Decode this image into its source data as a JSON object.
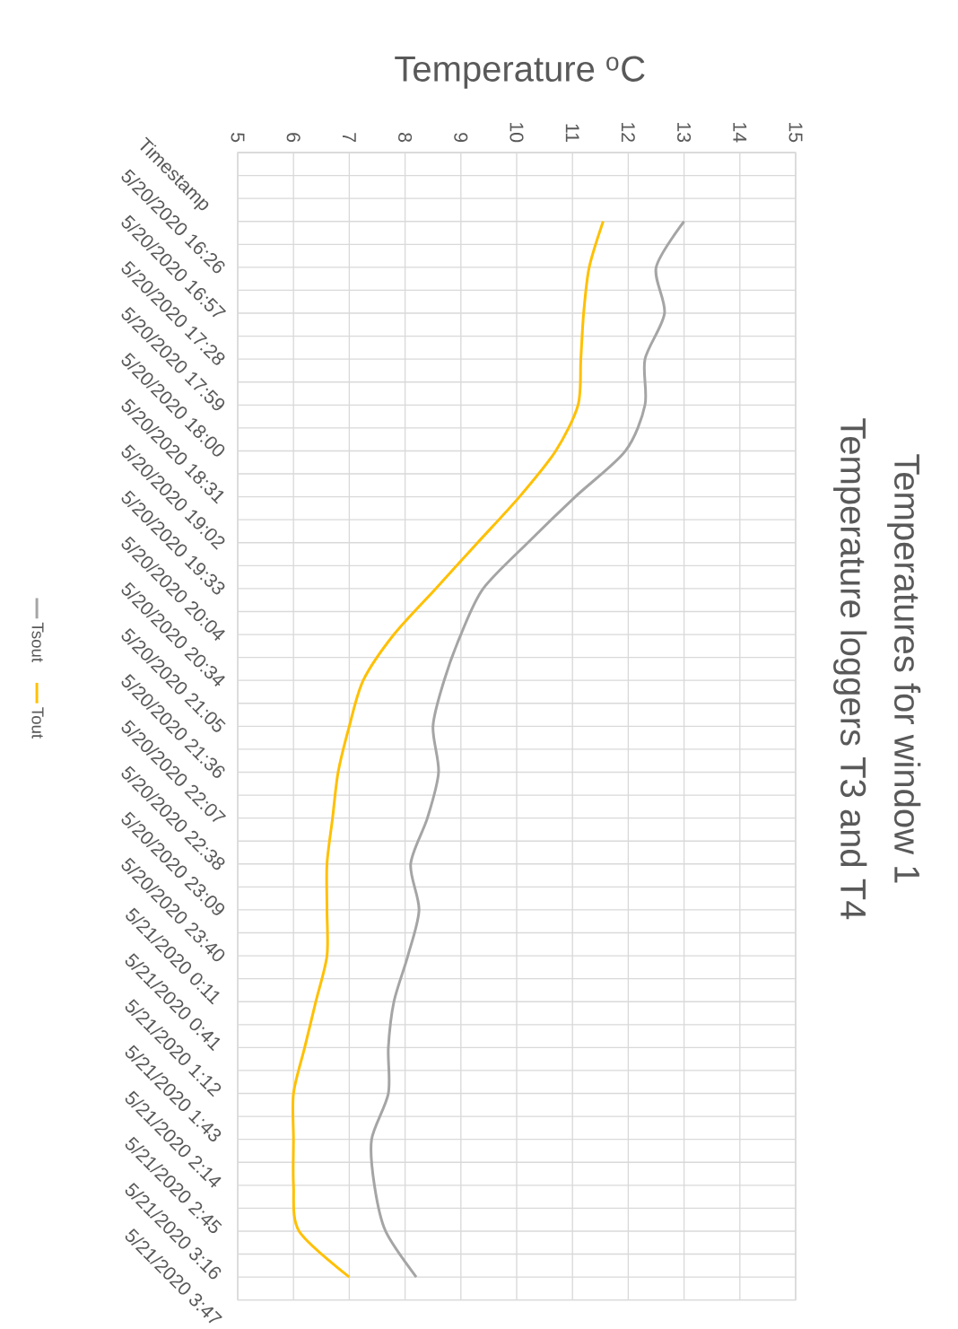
{
  "chart_data": {
    "type": "line",
    "title": "Temperatures for window 1",
    "subtitle": "Temperature loggers T3 and T4",
    "xlabel": "Temperature $^{o}$C",
    "orientation": "horizontal",
    "categories": [
      "Timestamp",
      "5/20/2020 16:26",
      "5/20/2020 16:57",
      "5/20/2020 17:28",
      "5/20/2020 17:59",
      "5/20/2020 18:00",
      "5/20/2020 18:31",
      "5/20/2020 19:02",
      "5/20/2020 19:33",
      "5/20/2020 20:04",
      "5/20/2020 20:34",
      "5/20/2020 21:05",
      "5/20/2020 21:36",
      "5/20/2020 22:07",
      "5/20/2020 22:38",
      "5/20/2020 23:09",
      "5/20/2020 23:40",
      "5/21/2020 0:11",
      "5/21/2020 0:41",
      "5/21/2020 1:12",
      "5/21/2020 1:43",
      "5/21/2020 2:14",
      "5/21/2020 2:45",
      "5/21/2020 3:16",
      "5/21/2020 3:47"
    ],
    "series": [
      {
        "name": "Tsout",
        "color": "#a5a5a5",
        "values": [
          null,
          13.0,
          12.5,
          12.65,
          12.3,
          12.3,
          11.95,
          11.05,
          10.2,
          9.4,
          9.0,
          8.7,
          8.5,
          8.6,
          8.4,
          8.1,
          8.25,
          8.05,
          7.8,
          7.7,
          7.7,
          7.4,
          7.45,
          7.65,
          8.2
        ]
      },
      {
        "name": "Tout",
        "color": "#ffc000",
        "values": [
          null,
          11.55,
          11.3,
          11.2,
          11.15,
          11.1,
          10.7,
          10.05,
          9.3,
          8.55,
          7.8,
          7.25,
          7.0,
          6.8,
          6.7,
          6.6,
          6.6,
          6.6,
          6.4,
          6.2,
          6.0,
          6.0,
          6.0,
          6.1,
          7.0
        ]
      }
    ],
    "xlim": [
      5,
      15
    ],
    "xticks": [
      5,
      6,
      7,
      8,
      9,
      10,
      11,
      12,
      13,
      14,
      15
    ],
    "grid": true,
    "legend": "left",
    "marker": "none",
    "line_style": "solid"
  }
}
